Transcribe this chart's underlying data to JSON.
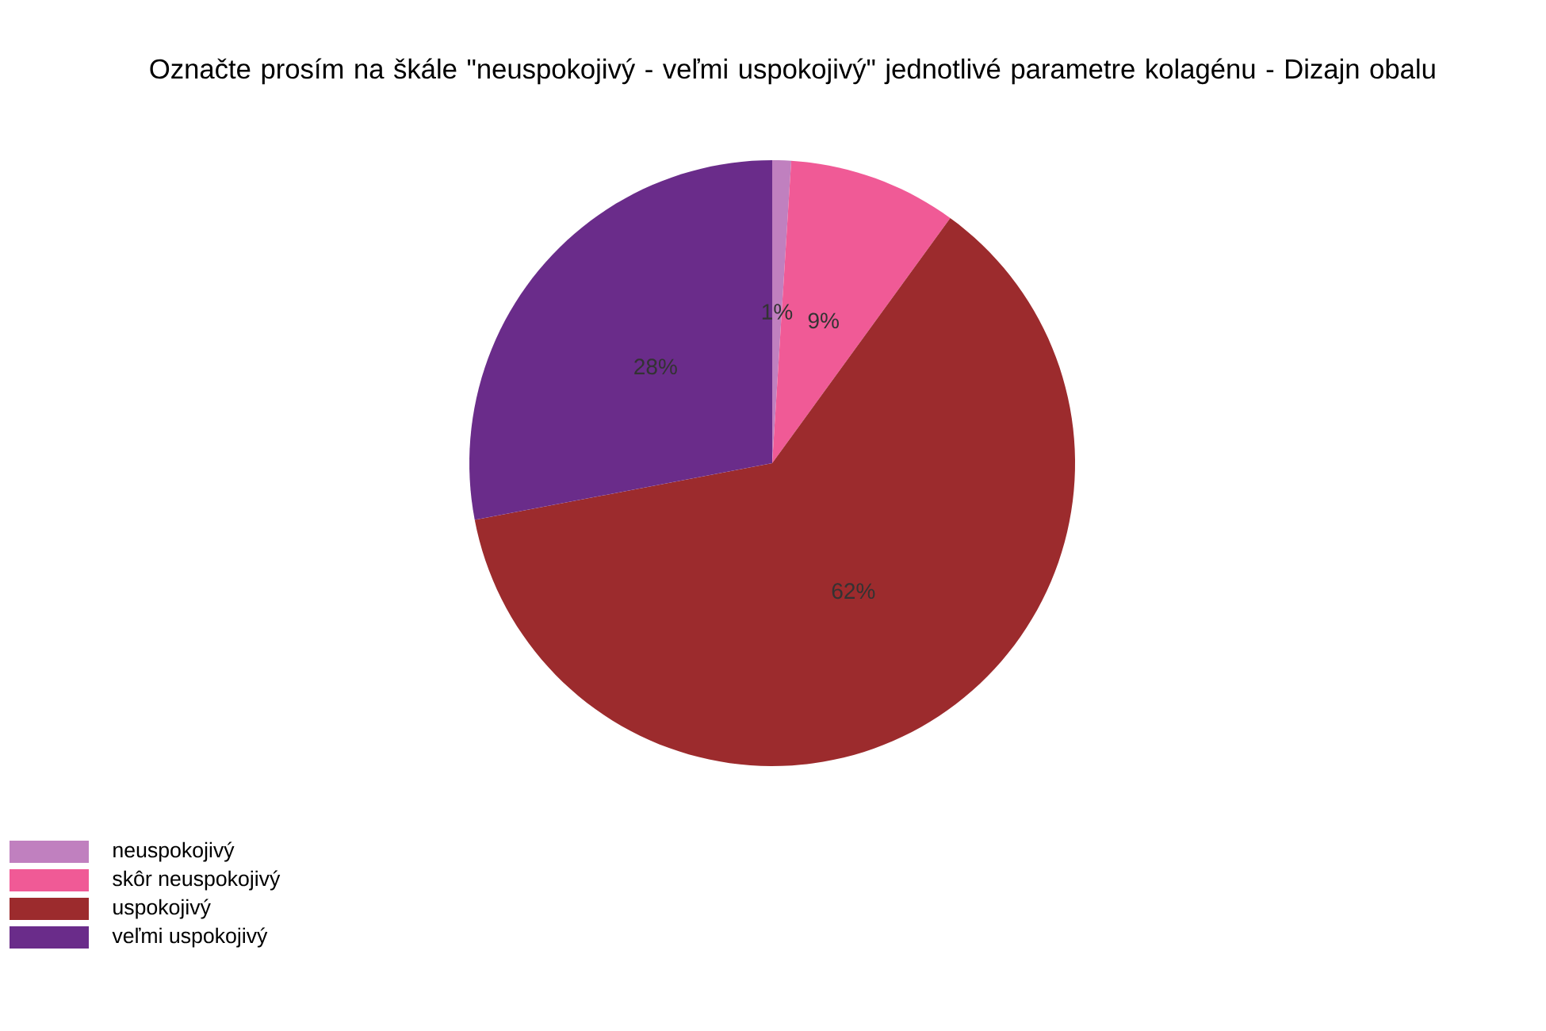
{
  "chart_data": {
    "type": "pie",
    "title": "Označte prosím na škále \"neuspokojivý - veľmi uspokojivý\" jednotlivé parametre kolagénu - Dizajn obalu",
    "categories": [
      "neuspokojivý",
      "skôr neuspokojivý",
      "uspokojivý",
      "veľmi uspokojivý"
    ],
    "values": [
      1,
      9,
      62,
      28
    ],
    "colors": [
      "#c080bf",
      "#f05a96",
      "#9c2b2d",
      "#6a2c8a"
    ],
    "value_labels": [
      "1%",
      "9%",
      "62%",
      "28%"
    ],
    "legend": "bottom left"
  }
}
